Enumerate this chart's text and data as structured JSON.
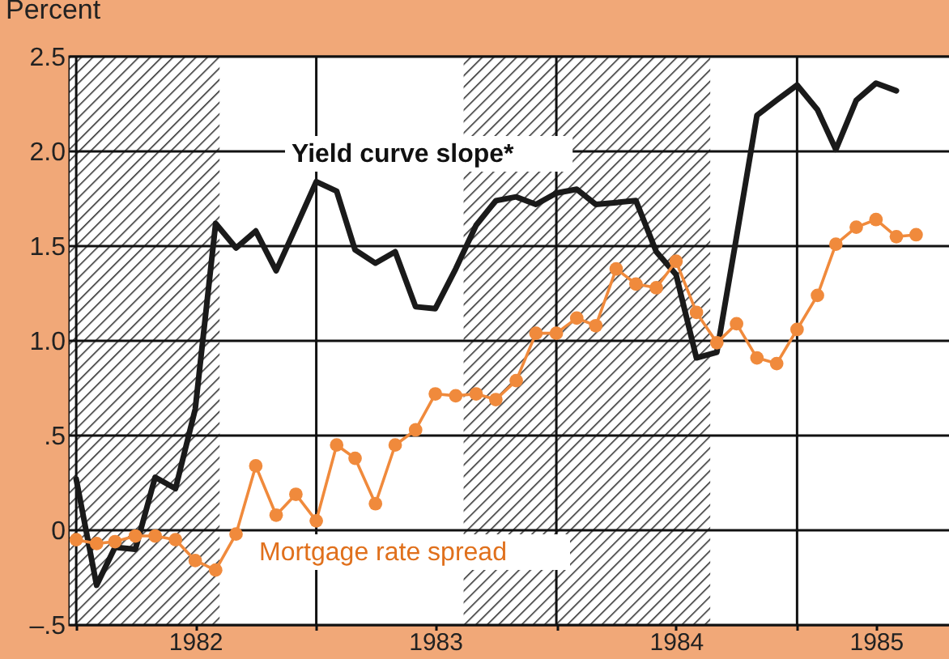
{
  "chart_data": {
    "type": "line",
    "ylabel": "Percent",
    "x": [
      "1982-01",
      "1982-02",
      "1982-03",
      "1982-04",
      "1982-05",
      "1982-06",
      "1982-07",
      "1982-08",
      "1982-09",
      "1982-10",
      "1982-11",
      "1982-12",
      "1983-01",
      "1983-02",
      "1983-03",
      "1983-04",
      "1983-05",
      "1983-06",
      "1983-07",
      "1983-08",
      "1983-09",
      "1983-10",
      "1983-11",
      "1983-12",
      "1984-01",
      "1984-02",
      "1984-03",
      "1984-04",
      "1984-05",
      "1984-06",
      "1984-07",
      "1984-08",
      "1984-09",
      "1984-10",
      "1984-11",
      "1984-12",
      "1985-01",
      "1985-02",
      "1985-03",
      "1985-04",
      "1985-05",
      "1985-06",
      "1985-07"
    ],
    "series": [
      {
        "name": "Yield curve slope*",
        "color": "#1a1a1a",
        "values": [
          0.27,
          -0.29,
          -0.09,
          -0.1,
          0.28,
          0.22,
          0.64,
          1.62,
          1.49,
          1.58,
          1.37,
          1.6,
          1.84,
          1.79,
          1.48,
          1.41,
          1.47,
          1.18,
          1.17,
          1.38,
          1.61,
          1.74,
          1.76,
          1.72,
          1.78,
          1.8,
          1.72,
          1.73,
          1.74,
          1.47,
          1.35,
          0.91,
          0.94,
          1.55,
          2.19,
          2.27,
          2.35,
          2.22,
          2.01,
          2.27,
          2.36,
          2.32,
          null
        ]
      },
      {
        "name": "Mortgage rate spread",
        "color": "#f08a3c",
        "marker": "circle",
        "values": [
          -0.05,
          -0.07,
          -0.06,
          -0.03,
          -0.03,
          -0.05,
          -0.16,
          -0.21,
          -0.02,
          0.34,
          0.08,
          0.19,
          0.05,
          0.45,
          0.38,
          0.14,
          0.45,
          0.53,
          0.72,
          0.71,
          0.72,
          0.69,
          0.79,
          1.04,
          1.04,
          1.12,
          1.08,
          1.38,
          1.3,
          1.28,
          1.42,
          1.15,
          0.99,
          1.09,
          0.91,
          0.88,
          1.06,
          1.24,
          1.51,
          1.6,
          1.64,
          1.55,
          1.56
        ]
      }
    ],
    "xlim": [
      "1981-12-22",
      "1985-08-20"
    ],
    "xticks": [
      {
        "value": "1982-01",
        "label": null
      },
      {
        "value": "1982-07",
        "label": "1982"
      },
      {
        "value": "1983-01",
        "label": null
      },
      {
        "value": "1983-07",
        "label": "1983"
      },
      {
        "value": "1984-01",
        "label": null
      },
      {
        "value": "1984-07",
        "label": "1984"
      },
      {
        "value": "1985-01",
        "label": null
      },
      {
        "value": "1985-05",
        "label": "1985"
      }
    ],
    "ylim": [
      -0.5,
      2.5
    ],
    "yticks": [
      {
        "value": -0.5,
        "label": "–.5"
      },
      0,
      {
        "value": 0.5,
        "label": ".5"
      },
      {
        "value": 1,
        "label": "1.0"
      },
      {
        "value": 1.5,
        "label": "1.5"
      },
      {
        "value": 2,
        "label": "2.0"
      },
      {
        "value": 2.5,
        "label": "2.5"
      }
    ],
    "bands": [
      {
        "axis": "x",
        "from": "1981-12-22",
        "to": "1982-08-07"
      },
      {
        "axis": "x",
        "from": "1983-08-13",
        "to": "1984-08-22"
      }
    ],
    "grid": true,
    "line_style": "solid"
  }
}
